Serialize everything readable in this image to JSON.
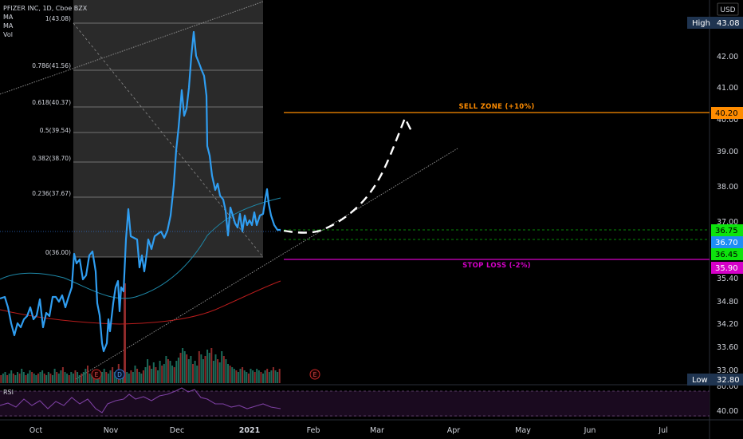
{
  "legend": {
    "title": "PFIZER INC, 1D, Cboe BZX",
    "ma1": "MA",
    "ma2": "MA",
    "vol": "Vol"
  },
  "currency": "USD",
  "rsi_label": "RSI",
  "colors": {
    "price": "#2f9df0",
    "ma_fast": "#1e88a8",
    "ma_slow": "#b71c1c",
    "sell": "#ff8c00",
    "stop": "#d500c8",
    "green_tag": "#0de30d",
    "blue_tag": "#1e8ef5",
    "hilo_tag": "#1f3450",
    "vol_up": "#1b6b5a",
    "vol_down": "#8e2a2a",
    "fib_bg": "#2a2a2a",
    "rsi": "#7b3fa0"
  },
  "price_axis": [
    "42.00",
    "41.00",
    "40.00",
    "39.00",
    "38.00",
    "37.00",
    "35.40",
    "34.80",
    "34.20",
    "33.60",
    "33.00"
  ],
  "rsi_axis": [
    "80.00",
    "40.00"
  ],
  "time_axis": [
    "Oct",
    "Nov",
    "Dec",
    "2021",
    "Feb",
    "Mar",
    "Apr",
    "May",
    "Jun",
    "Jul"
  ],
  "fib_levels": [
    {
      "label": "1(43.08)",
      "price": 43.08
    },
    {
      "label": "0.786(41.56)",
      "price": 41.56
    },
    {
      "label": "0.618(40.37)",
      "price": 40.37
    },
    {
      "label": "0.5(39.54)",
      "price": 39.54
    },
    {
      "label": "0.382(38.70)",
      "price": 38.7
    },
    {
      "label": "0.236(37.67)",
      "price": 37.67
    },
    {
      "label": "0(36.00)",
      "price": 36.0
    }
  ],
  "sell_zone": {
    "label": "SELL ZONE (+10%)",
    "value": "40.20"
  },
  "stop_loss": {
    "label": "STOP LOSS (-2%)",
    "value": "35.90"
  },
  "tags": {
    "high": {
      "label": "High",
      "value": "43.08"
    },
    "low": {
      "label": "Low",
      "value": "32.80"
    },
    "t1": "36.75",
    "t2": "36.70",
    "t3": "36.45"
  },
  "events": [
    "E",
    "D",
    "E"
  ]
}
